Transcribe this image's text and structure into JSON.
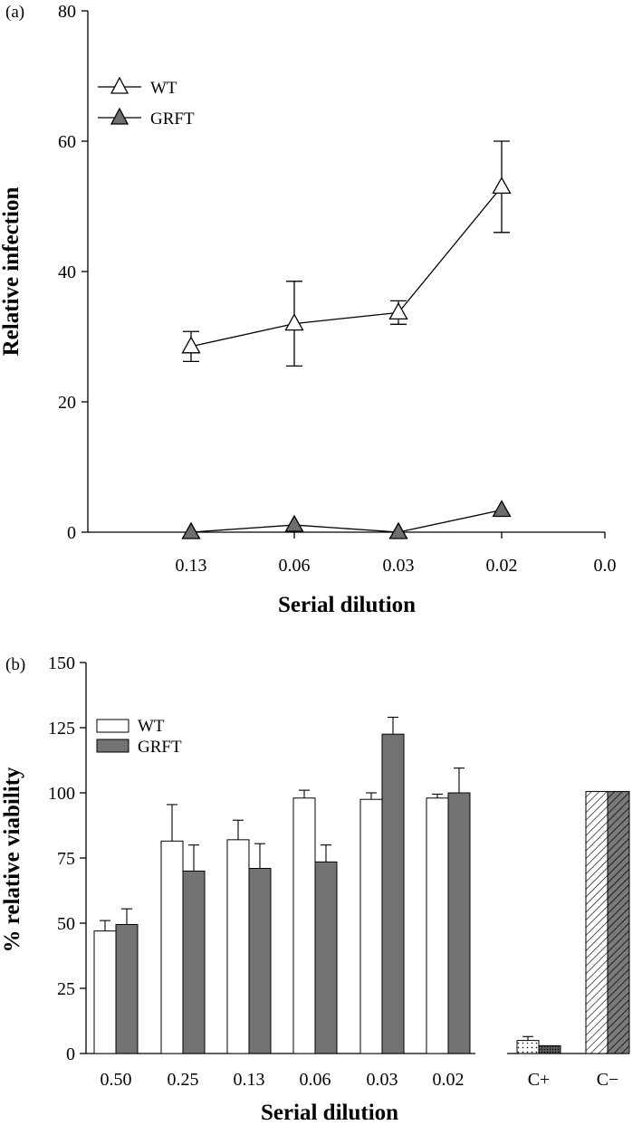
{
  "chart_data": [
    {
      "type": "line",
      "panel_label": "(a)",
      "xlabel": "Serial dilution",
      "ylabel": "Relative  infection",
      "x_categories": [
        "0.13",
        "0.06",
        "0.03",
        "0.02",
        "0.0"
      ],
      "y_ticks": [
        "0",
        "20",
        "40",
        "60",
        "80"
      ],
      "ylim": [
        0,
        80
      ],
      "legend_position": "top-left",
      "series": [
        {
          "name": "WT",
          "marker": "open-triangle",
          "values": [
            28.5,
            32,
            33.7,
            53
          ],
          "error": [
            2.3,
            6.5,
            1.8,
            7
          ]
        },
        {
          "name": "GRFT",
          "marker": "filled-triangle",
          "color": "#6e6e6e",
          "values": [
            0,
            1.1,
            0,
            3.4
          ],
          "error": [
            0,
            0,
            0,
            0
          ]
        }
      ]
    },
    {
      "type": "bar",
      "panel_label": "(b)",
      "xlabel": "Serial dilution",
      "ylabel": "% relative viability",
      "categories": [
        "0.50",
        "0.25",
        "0.13",
        "0.06",
        "0.03",
        "0.02"
      ],
      "y_ticks": [
        "0",
        "25",
        "50",
        "75",
        "100",
        "125",
        "150"
      ],
      "ylim": [
        0,
        150
      ],
      "legend_position": "top-left",
      "series": [
        {
          "name": "WT",
          "color": "#ffffff",
          "values": [
            47,
            81.5,
            82,
            98,
            97.5,
            98
          ],
          "error": [
            4,
            14,
            7.5,
            3,
            2.5,
            1.5
          ]
        },
        {
          "name": "GRFT",
          "color": "#737373",
          "values": [
            49.5,
            70,
            71,
            73.5,
            122.5,
            100
          ],
          "error": [
            6,
            10,
            9.5,
            6.5,
            6.5,
            9.5
          ]
        }
      ],
      "controls": {
        "categories": [
          "C+",
          "C−"
        ],
        "WT": [
          5,
          100.5
        ],
        "GRFT": [
          3,
          100.5
        ],
        "WT_error": [
          1.5,
          0
        ],
        "GRFT_error": [
          0,
          0
        ]
      }
    }
  ]
}
